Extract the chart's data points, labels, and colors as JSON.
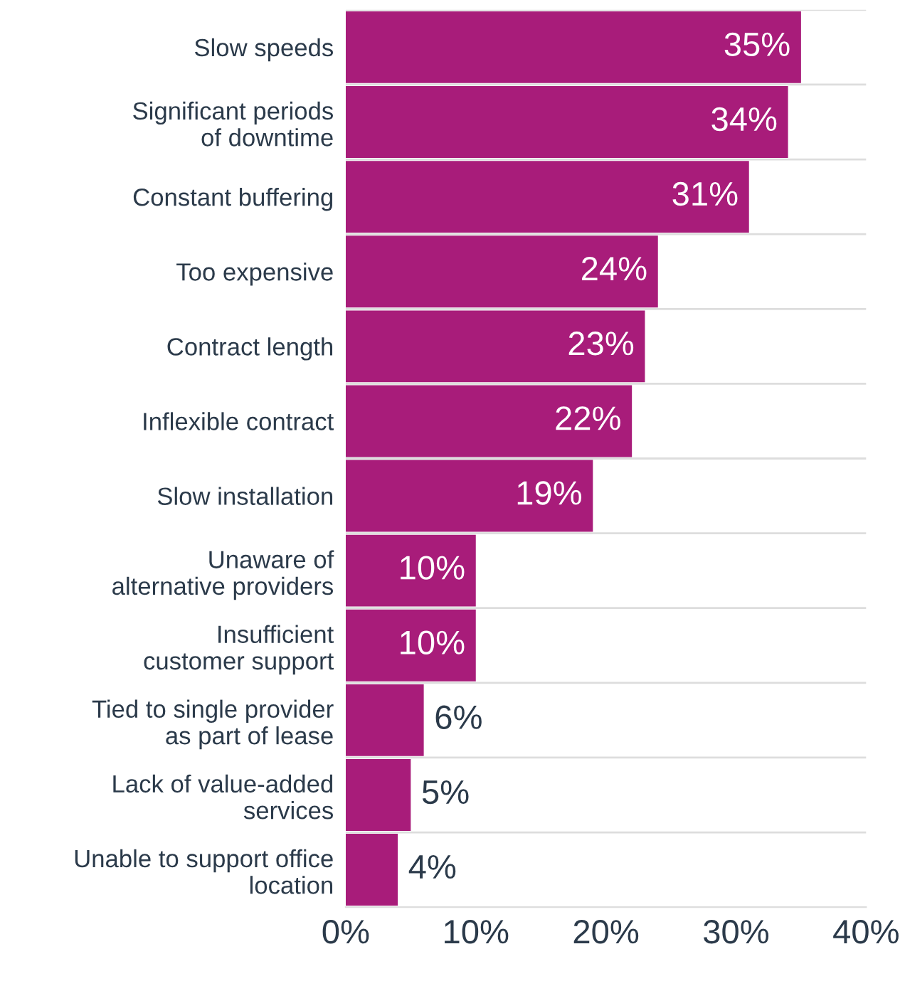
{
  "chart_data": {
    "type": "bar",
    "orientation": "horizontal",
    "categories": [
      "Slow speeds",
      "Significant periods\nof downtime",
      "Constant buffering",
      "Too expensive",
      "Contract length",
      "Inflexible contract",
      "Slow installation",
      "Unaware of\nalternative providers",
      "Insufficient\ncustomer support",
      "Tied to single provider\nas part of lease",
      "Lack of value-added\nservices",
      "Unable to support office\nlocation"
    ],
    "values": [
      35,
      34,
      31,
      24,
      23,
      22,
      19,
      10,
      10,
      6,
      5,
      4
    ],
    "value_labels": [
      "35%",
      "34%",
      "31%",
      "24%",
      "23%",
      "22%",
      "19%",
      "10%",
      "10%",
      "6%",
      "5%",
      "4%"
    ],
    "color": "#a81c7a",
    "xlim": [
      0,
      40
    ],
    "xticks": [
      {
        "value": 0,
        "label": "0%"
      },
      {
        "value": 10,
        "label": "10%"
      },
      {
        "value": 20,
        "label": "20%"
      },
      {
        "value": 30,
        "label": "30%"
      },
      {
        "value": 40,
        "label": "40%"
      }
    ],
    "grid": "y"
  }
}
